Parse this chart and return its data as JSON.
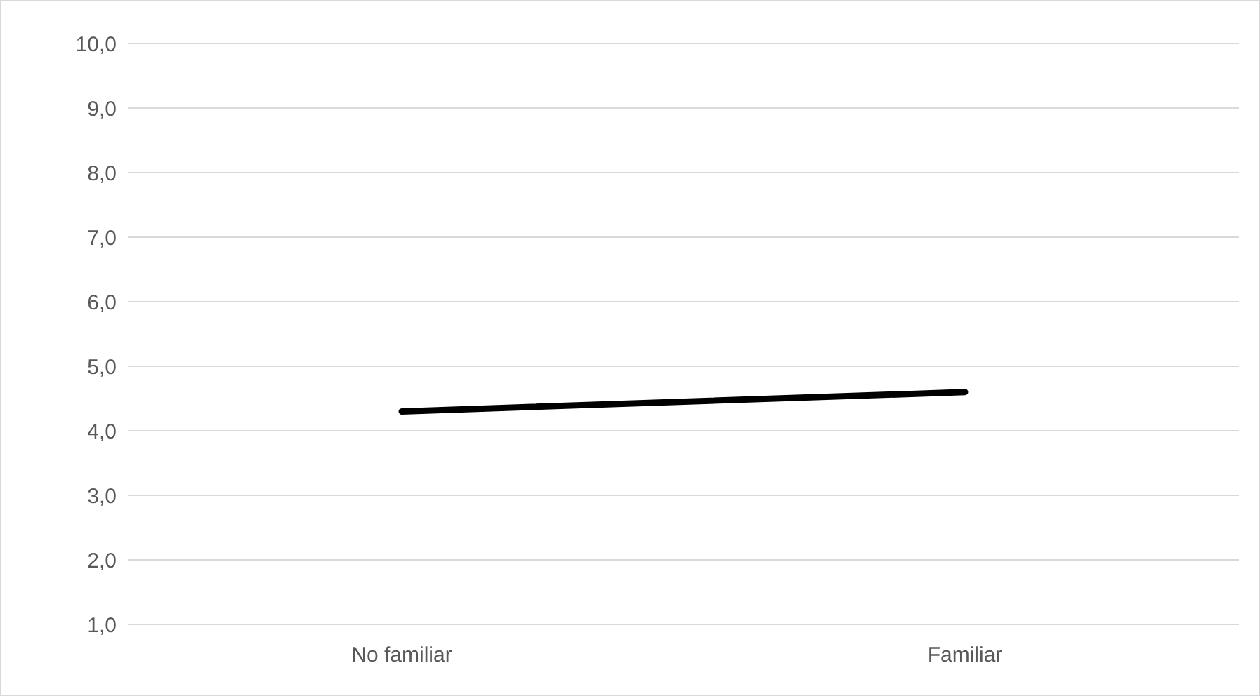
{
  "chart_data": {
    "type": "line",
    "categories": [
      "No familiar",
      "Familiar"
    ],
    "series": [
      {
        "color": "#000000",
        "values": [
          4.3,
          4.6
        ]
      }
    ],
    "ylim": [
      1,
      10
    ],
    "yticks": [
      {
        "value": 1,
        "label": "1,0"
      },
      {
        "value": 2,
        "label": "2,0"
      },
      {
        "value": 3,
        "label": "3,0"
      },
      {
        "value": 4,
        "label": "4,0"
      },
      {
        "value": 5,
        "label": "5,0"
      },
      {
        "value": 6,
        "label": "6,0"
      },
      {
        "value": 7,
        "label": "7,0"
      },
      {
        "value": 8,
        "label": "8,0"
      },
      {
        "value": 9,
        "label": "9,0"
      },
      {
        "value": 10,
        "label": "10,0"
      }
    ],
    "grid": "y",
    "marker": "none",
    "legend": false
  }
}
